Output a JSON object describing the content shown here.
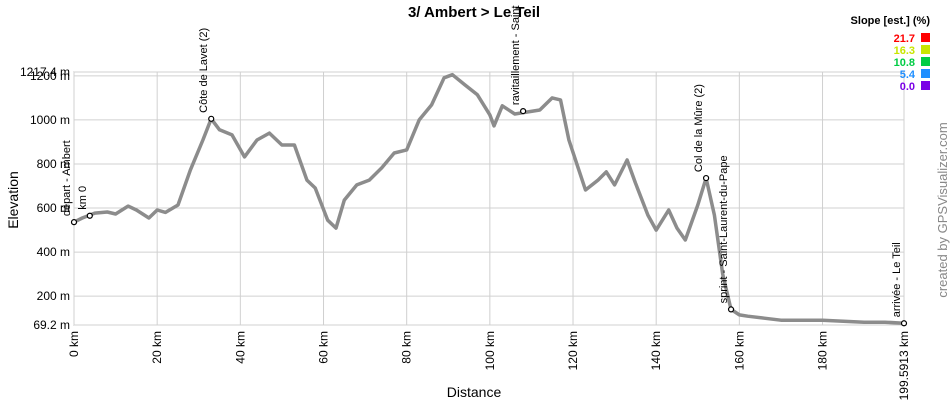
{
  "chart_data": {
    "type": "line",
    "title": "3/ Ambert > Le Teil",
    "x_label": "Distance",
    "y_label": "Elevation",
    "color": "#8c8c8c",
    "grid": true,
    "xlim": [
      0,
      199.5913
    ],
    "ylim": [
      69.2,
      1217.4
    ],
    "xticks": [
      {
        "value": 0,
        "label": "0 km"
      },
      {
        "value": 20,
        "label": "20 km"
      },
      {
        "value": 40,
        "label": "40 km"
      },
      {
        "value": 60,
        "label": "60 km"
      },
      {
        "value": 80,
        "label": "80 km"
      },
      {
        "value": 100,
        "label": "100 km"
      },
      {
        "value": 120,
        "label": "120 km"
      },
      {
        "value": 140,
        "label": "140 km"
      },
      {
        "value": 160,
        "label": "160 km"
      },
      {
        "value": 180,
        "label": "180 km"
      },
      {
        "value": 199.5913,
        "label": "199.5913 km"
      }
    ],
    "yticks": [
      {
        "value": 69.2,
        "label": "69.2 m"
      },
      {
        "value": 200,
        "label": "200 m"
      },
      {
        "value": 400,
        "label": "400 m"
      },
      {
        "value": 600,
        "label": "600 m"
      },
      {
        "value": 800,
        "label": "800 m"
      },
      {
        "value": 1000,
        "label": "1000 m"
      },
      {
        "value": 1200,
        "label": "1200 m"
      },
      {
        "value": 1217.4,
        "label": "1217.4 m"
      }
    ],
    "x": [
      0,
      2,
      5,
      8,
      10,
      13,
      15,
      18,
      20,
      22,
      25,
      28,
      31,
      33,
      35,
      38,
      41,
      44,
      47,
      50,
      53,
      56,
      58,
      61,
      63,
      65,
      68,
      71,
      74,
      77,
      80,
      83,
      86,
      89,
      91,
      94,
      97,
      100,
      101,
      103,
      106,
      109,
      112,
      115,
      117,
      119,
      121,
      123,
      126,
      128,
      130,
      133,
      135,
      138,
      140,
      143,
      145,
      147,
      150,
      152,
      154,
      156,
      158,
      160,
      162,
      166,
      170,
      175,
      180,
      185,
      190,
      195,
      199.5913
    ],
    "values": [
      536,
      555,
      577,
      582,
      573,
      609,
      591,
      555,
      591,
      580,
      614,
      773,
      909,
      1005,
      955,
      932,
      832,
      909,
      940,
      886,
      886,
      727,
      691,
      545,
      509,
      636,
      705,
      727,
      782,
      850,
      864,
      1000,
      1068,
      1191,
      1205,
      1159,
      1114,
      1023,
      973,
      1064,
      1027,
      1036,
      1045,
      1100,
      1091,
      909,
      795,
      682,
      727,
      764,
      705,
      818,
      714,
      568,
      500,
      591,
      509,
      455,
      614,
      736,
      568,
      300,
      140,
      115,
      109,
      100,
      91,
      91,
      91,
      86,
      82,
      82,
      77
    ],
    "waypoints": [
      {
        "label": "départ - Ambert",
        "x": 0,
        "y": 536
      },
      {
        "label": "km 0",
        "x": 3.8,
        "y": 565
      },
      {
        "label": "Côte de Lavet (2)",
        "x": 33,
        "y": 1005
      },
      {
        "label": "ravitaillement - Saint",
        "x": 108,
        "y": 1040
      },
      {
        "label": "Col de la Mûre (2)",
        "x": 152,
        "y": 736
      },
      {
        "label": "sprint - Saint-Laurent-du-Pape",
        "x": 158,
        "y": 140
      },
      {
        "label": "arrivée - Le Teil",
        "x": 199.5913,
        "y": 77
      }
    ],
    "legend_title": "Slope [est.] (%)",
    "legend": [
      {
        "label": "21.7",
        "color": "#ff0000"
      },
      {
        "label": "16.3",
        "color": "#c8e600"
      },
      {
        "label": "10.8",
        "color": "#00cc44"
      },
      {
        "label": "5.4",
        "color": "#1f8fff"
      },
      {
        "label": "0.0",
        "color": "#7a00e6"
      }
    ],
    "watermark": "created by GPSVisualizer.com"
  }
}
